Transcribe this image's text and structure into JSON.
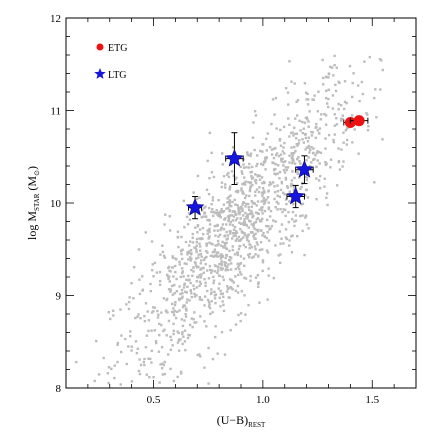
{
  "chart_data": {
    "type": "scatter",
    "xlabel_main": "(U−B)",
    "xlabel_sub": "REST",
    "ylabel_main": "log  M",
    "ylabel_sub": "STAR",
    "ylabel_unit": " (M",
    "ylabel_unit_sub": "⊙",
    "ylabel_close": ")",
    "xlim": [
      0.1,
      1.7
    ],
    "ylim": [
      8,
      12
    ],
    "x_ticks": [
      0.5,
      1.0,
      1.5
    ],
    "x_tick_labels": [
      "0.5",
      "1.0",
      "1.5"
    ],
    "y_ticks": [
      8,
      9,
      10,
      11,
      12
    ],
    "y_tick_labels": [
      "8",
      "9",
      "10",
      "11",
      "12"
    ],
    "x_minor_step": 0.1,
    "y_minor_step": 0.2,
    "grid": false,
    "legend_position": "top-left",
    "legend": [
      {
        "label": "ETG",
        "marker": "circle",
        "color": "#ee1111"
      },
      {
        "label": "LTG",
        "marker": "star",
        "color": "#1515dd"
      }
    ],
    "background_sample": {
      "description_color": "#bcbcbc",
      "count": 1400,
      "trend": {
        "x_center": 0.88,
        "x_spread": 0.28,
        "slope": 2.55,
        "intercept_at_x0": 7.45,
        "y_scatter": 0.42
      }
    },
    "series": [
      {
        "name": "ETG",
        "color": "#ee1111",
        "marker": "circle",
        "points": [
          {
            "x": 1.4,
            "y": 10.87,
            "xerr": 0.03,
            "yerr": 0.0
          },
          {
            "x": 1.44,
            "y": 10.89,
            "xerr": 0.04,
            "yerr": 0.0
          }
        ]
      },
      {
        "name": "LTG",
        "color": "#1515dd",
        "marker": "star",
        "points": [
          {
            "x": 0.69,
            "y": 9.95,
            "xerr": 0.03,
            "yerr": 0.12
          },
          {
            "x": 0.87,
            "y": 10.48,
            "xerr": 0.04,
            "yerr": 0.28
          },
          {
            "x": 1.15,
            "y": 10.07,
            "xerr": 0.04,
            "yerr": 0.12
          },
          {
            "x": 1.19,
            "y": 10.36,
            "xerr": 0.04,
            "yerr": 0.15
          }
        ]
      }
    ]
  }
}
